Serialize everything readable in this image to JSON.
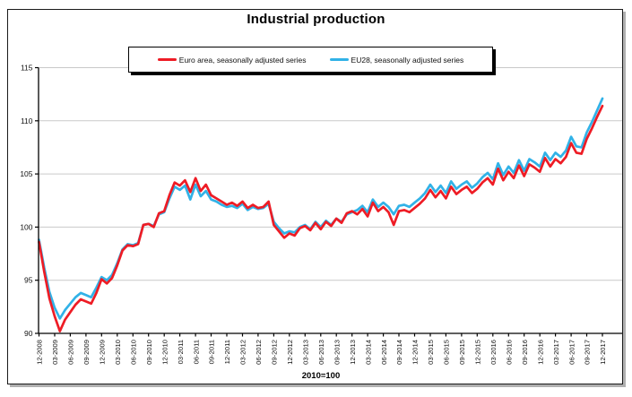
{
  "chart": {
    "title": "Industrial production",
    "caption": "2010=100",
    "legend": [
      {
        "label": "Euro area, seasonally adjusted series",
        "color": "#ee1c25"
      },
      {
        "label": "EU28, seasonally adjusted series",
        "color": "#31b2e7"
      }
    ]
  },
  "chart_data": {
    "type": "line",
    "title": "Industrial production",
    "note": "2010=100",
    "frequency": "monthly",
    "x_start": "12-2008",
    "x_end": "12-2017",
    "ylim": [
      90,
      115
    ],
    "y_ticks": [
      90,
      95,
      100,
      105,
      110,
      115
    ],
    "grid": true,
    "legend_position": "top",
    "tick_labels": [
      "12-2008",
      "03-2009",
      "06-2009",
      "09-2009",
      "12-2009",
      "03-2010",
      "06-2010",
      "09-2010",
      "12-2010",
      "03-2011",
      "06-2011",
      "09-2011",
      "12-2011",
      "03-2012",
      "06-2012",
      "09-2012",
      "12-2012",
      "03-2013",
      "06-2013",
      "09-2013",
      "12-2013",
      "03-2014",
      "06-2014",
      "09-2014",
      "12-2014",
      "03-2015",
      "06-2015",
      "09-2015",
      "12-2015",
      "03-2016",
      "06-2016",
      "09-2016",
      "12-2016",
      "03-2017",
      "06-2017",
      "09-2017",
      "12-2017"
    ],
    "series": [
      {
        "name": "Euro area, seasonally adjusted series",
        "color": "#ee1c25",
        "values": [
          98.6,
          95.8,
          93.3,
          91.6,
          90.2,
          91.3,
          92.0,
          92.7,
          93.2,
          93.0,
          92.8,
          93.8,
          95.1,
          94.7,
          95.2,
          96.4,
          97.8,
          98.3,
          98.2,
          98.4,
          100.2,
          100.3,
          100.0,
          101.3,
          101.5,
          103.0,
          104.2,
          103.9,
          104.4,
          103.3,
          104.6,
          103.4,
          104.0,
          103.0,
          102.7,
          102.4,
          102.1,
          102.3,
          102.0,
          102.4,
          101.8,
          102.1,
          101.8,
          101.9,
          102.4,
          100.2,
          99.6,
          99.0,
          99.4,
          99.2,
          99.9,
          100.1,
          99.7,
          100.4,
          99.8,
          100.5,
          100.1,
          100.8,
          100.4,
          101.3,
          101.5,
          101.2,
          101.7,
          101.0,
          102.3,
          101.5,
          101.9,
          101.4,
          100.2,
          101.5,
          101.6,
          101.4,
          101.8,
          102.2,
          102.7,
          103.5,
          102.8,
          103.4,
          102.7,
          103.8,
          103.1,
          103.5,
          103.8,
          103.2,
          103.6,
          104.2,
          104.6,
          104.0,
          105.5,
          104.4,
          105.2,
          104.6,
          105.8,
          104.8,
          105.9,
          105.6,
          105.2,
          106.5,
          105.7,
          106.4,
          106.0,
          106.6,
          107.9,
          107.0,
          106.9,
          108.3,
          109.3,
          110.4,
          111.4
        ]
      },
      {
        "name": "EU28, seasonally adjusted series",
        "color": "#31b2e7",
        "values": [
          98.8,
          96.2,
          93.9,
          92.4,
          91.4,
          92.2,
          92.8,
          93.4,
          93.8,
          93.6,
          93.4,
          94.3,
          95.3,
          95.0,
          95.5,
          96.6,
          97.9,
          98.4,
          98.3,
          98.5,
          100.2,
          100.3,
          100.1,
          101.2,
          101.4,
          102.7,
          103.8,
          103.5,
          103.9,
          102.6,
          104.0,
          102.9,
          103.4,
          102.6,
          102.4,
          102.1,
          101.9,
          102.0,
          101.8,
          102.2,
          101.6,
          101.9,
          101.7,
          101.8,
          102.2,
          100.5,
          99.9,
          99.4,
          99.6,
          99.5,
          100.0,
          100.2,
          99.8,
          100.5,
          100.0,
          100.6,
          100.2,
          100.8,
          100.5,
          101.2,
          101.4,
          101.6,
          102.0,
          101.4,
          102.6,
          101.9,
          102.3,
          101.9,
          101.2,
          102.0,
          102.1,
          101.9,
          102.3,
          102.7,
          103.2,
          104.0,
          103.3,
          103.9,
          103.2,
          104.3,
          103.6,
          104.0,
          104.3,
          103.7,
          104.1,
          104.7,
          105.1,
          104.5,
          106.0,
          104.9,
          105.7,
          105.1,
          106.3,
          105.3,
          106.4,
          106.1,
          105.7,
          107.0,
          106.3,
          107.0,
          106.6,
          107.2,
          108.5,
          107.6,
          107.5,
          108.9,
          109.9,
          111.0,
          112.1
        ]
      }
    ]
  }
}
